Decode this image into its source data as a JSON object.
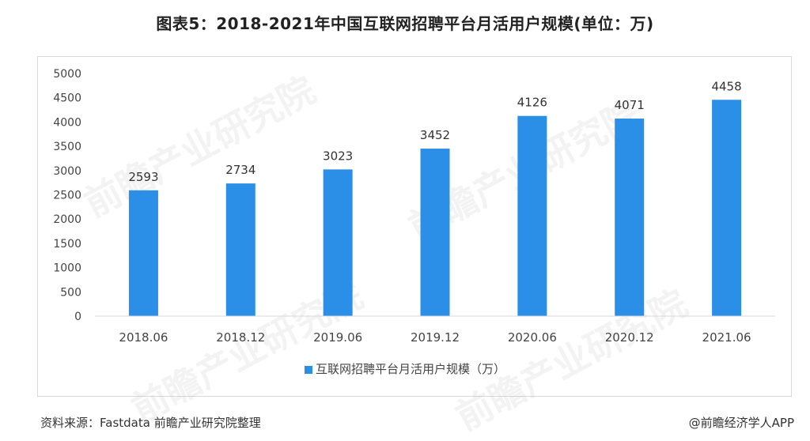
{
  "title": "图表5：2018-2021年中国互联网招聘平台月活用户规模(单位：万)",
  "source": "资料来源：Fastdata 前瞻产业研究院整理",
  "credit": "@前瞻经济学人APP",
  "watermark": "前瞻产业研究院",
  "colors": {
    "bar": "#2b8fe8",
    "axis": "#d9d9d9",
    "text": "#444444"
  },
  "chart_data": {
    "type": "bar",
    "categories": [
      "2018.06",
      "2018.12",
      "2019.06",
      "2019.12",
      "2020.06",
      "2020.12",
      "2021.06"
    ],
    "series": [
      {
        "name": "互联网招聘平台月活用户规模（万）",
        "values": [
          2593,
          2734,
          3023,
          3452,
          4126,
          4071,
          4458
        ]
      }
    ],
    "ylim": [
      0,
      5000
    ],
    "yticks": [
      0,
      500,
      1000,
      1500,
      2000,
      2500,
      3000,
      3500,
      4000,
      4500,
      5000
    ],
    "grid": false,
    "legend": "bottom"
  }
}
